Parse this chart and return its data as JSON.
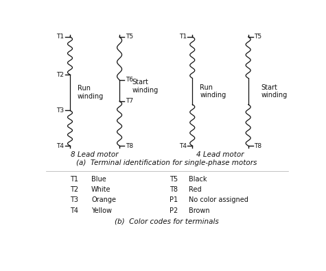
{
  "title_a": "(a)  Terminal identification for single-phase motors",
  "title_b": "(b)  Color codes for terminals",
  "label_8lead": "8 Lead motor",
  "label_4lead": "4 Lead motor",
  "run_winding": "Run\nwinding",
  "start_winding": "Start\nwinding",
  "color_codes_left": [
    [
      "T1",
      "Blue"
    ],
    [
      "T2",
      "White"
    ],
    [
      "T3",
      "Orange"
    ],
    [
      "T4",
      "Yellow"
    ]
  ],
  "color_codes_right": [
    [
      "T5",
      "Black"
    ],
    [
      "T8",
      "Red"
    ],
    [
      "P1",
      "No color assigned"
    ],
    [
      "P2",
      "Brown"
    ]
  ],
  "bg_color": "#ffffff",
  "text_color": "#111111",
  "line_color": "#111111",
  "font_size_caption": 7.5,
  "font_size_label": 7.0,
  "font_size_terminal": 6.5,
  "font_size_winding": 7.0,
  "font_size_motor": 7.5
}
